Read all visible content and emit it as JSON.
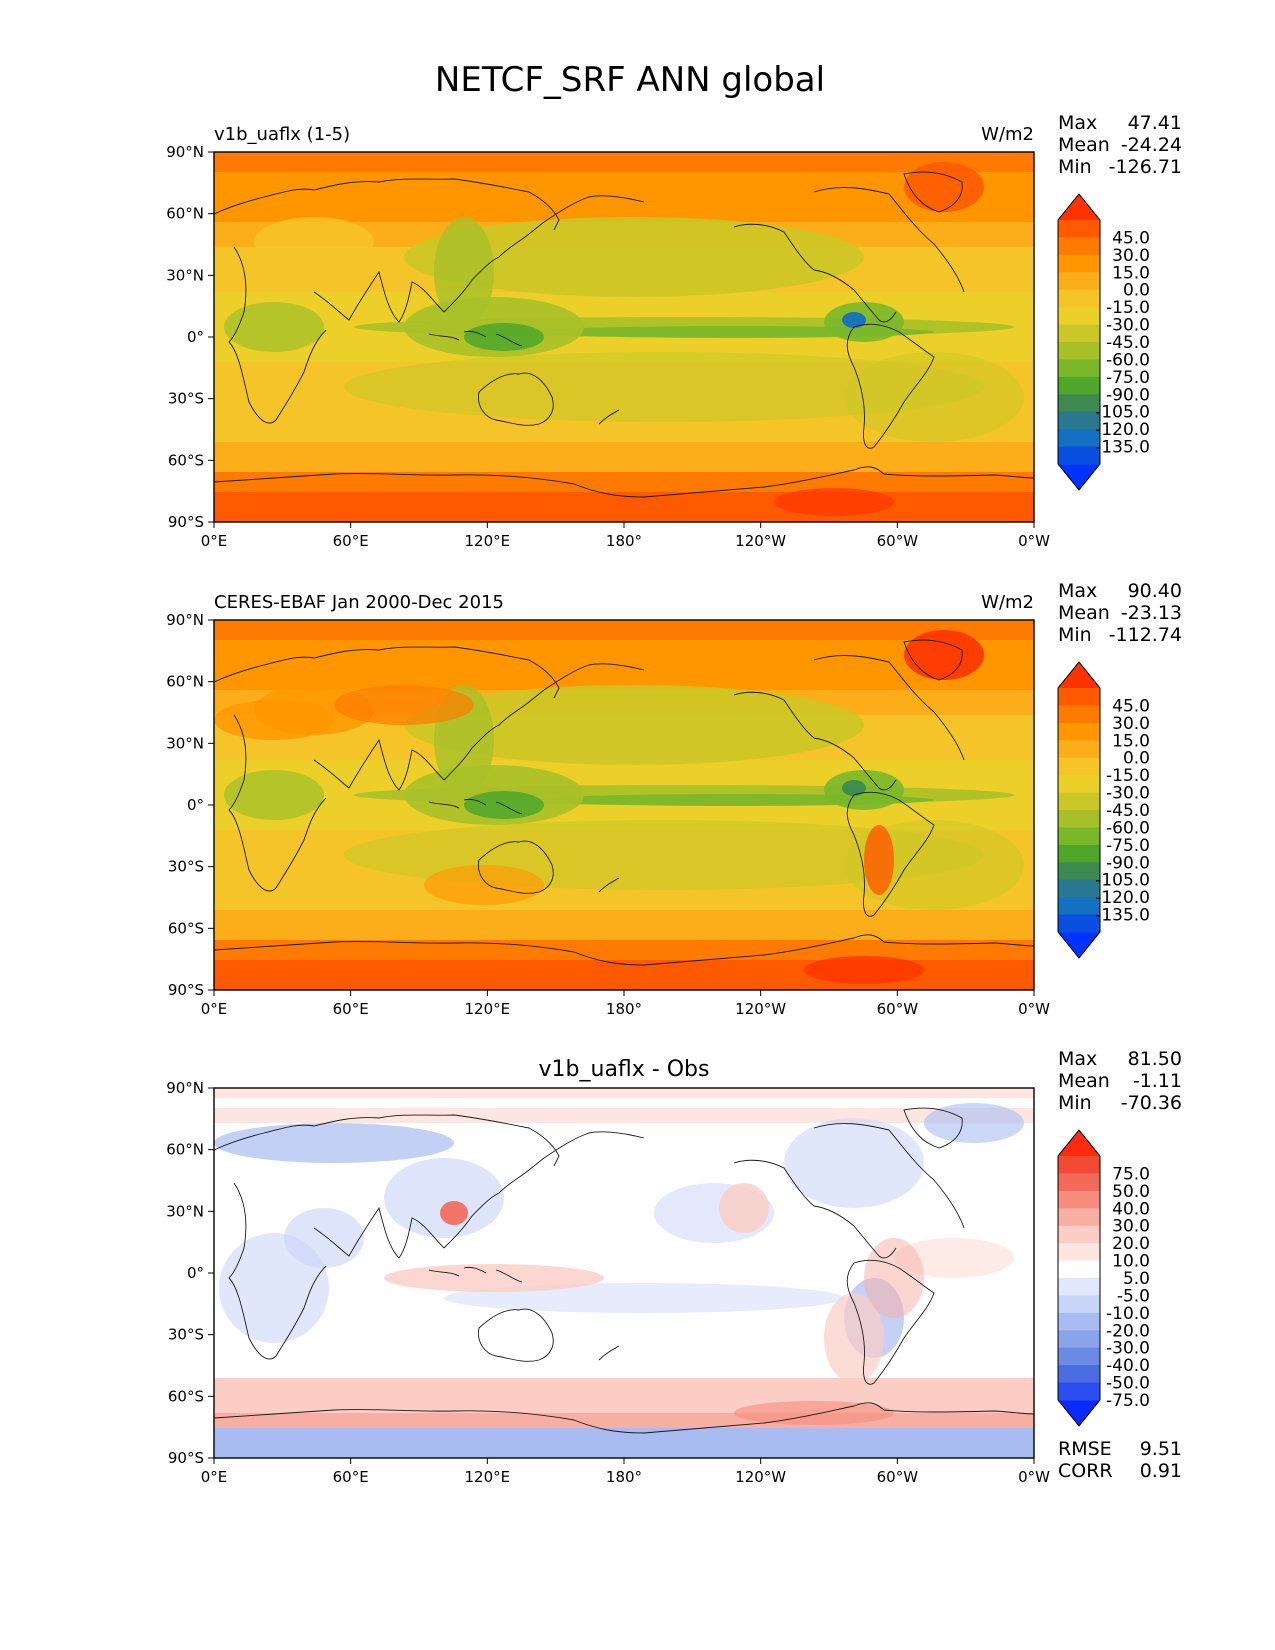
{
  "title": "NETCF_SRF ANN global",
  "x_ticks": [
    "0°E",
    "60°E",
    "120°E",
    "180°",
    "120°W",
    "60°W",
    "0°W"
  ],
  "y_ticks": [
    "90°N",
    "60°N",
    "30°N",
    "0°",
    "30°S",
    "60°S",
    "90°S"
  ],
  "stat_labels": {
    "max": "Max",
    "mean": "Mean",
    "min": "Min",
    "rmse": "RMSE",
    "corr": "CORR"
  },
  "panels": [
    {
      "title_left": "v1b_uaflx (1-5)",
      "title_center": "",
      "units": "W/m2",
      "stats": {
        "max": "47.41",
        "mean": "-24.24",
        "min": "-126.71"
      },
      "colorbar": {
        "ticks": [
          "45.0",
          "30.0",
          "15.0",
          "0.0",
          "-15.0",
          "-30.0",
          "-45.0",
          "-60.0",
          "-75.0",
          "-90.0",
          "-105.0",
          "-120.0",
          "-135.0"
        ],
        "colors": [
          "#ff3300",
          "#ff5a00",
          "#ff7a00",
          "#ff9600",
          "#fcae1a",
          "#f5c428",
          "#eccf28",
          "#c9c826",
          "#a8c028",
          "#7ab82a",
          "#4ea72b",
          "#3c8a50",
          "#2a7890",
          "#1470c0",
          "#0a50e0",
          "#0033ff"
        ]
      },
      "map_style": "model"
    },
    {
      "title_left": "CERES-EBAF Jan 2000-Dec 2015",
      "title_center": "",
      "units": "W/m2",
      "stats": {
        "max": "90.40",
        "mean": "-23.13",
        "min": "-112.74"
      },
      "colorbar": {
        "ticks": [
          "45.0",
          "30.0",
          "15.0",
          "0.0",
          "-15.0",
          "-30.0",
          "-45.0",
          "-60.0",
          "-75.0",
          "-90.0",
          "-105.0",
          "-120.0",
          "-135.0"
        ],
        "colors": [
          "#ff3300",
          "#ff5a00",
          "#ff7a00",
          "#ff9600",
          "#fcae1a",
          "#f5c428",
          "#eccf28",
          "#c9c826",
          "#a8c028",
          "#7ab82a",
          "#4ea72b",
          "#3c8a50",
          "#2a7890",
          "#1470c0",
          "#0a50e0",
          "#0033ff"
        ]
      },
      "map_style": "obs"
    },
    {
      "title_left": "",
      "title_center": "v1b_uaflx - Obs",
      "units": "",
      "stats": {
        "max": "81.50",
        "mean": "-1.11",
        "min": "-70.36",
        "rmse": "9.51",
        "corr": "0.91"
      },
      "colorbar": {
        "ticks": [
          "75.0",
          "50.0",
          "40.0",
          "30.0",
          "20.0",
          "10.0",
          "5.0",
          "-5.0",
          "-10.0",
          "-20.0",
          "-30.0",
          "-40.0",
          "-50.0",
          "-75.0"
        ],
        "colors": [
          "#ff2a10",
          "#f04a35",
          "#f26a58",
          "#f58c7c",
          "#f8aea2",
          "#fbcdc5",
          "#fde6e2",
          "#ffffff",
          "#e2e8fc",
          "#c8d4f8",
          "#a8bcf2",
          "#8aa4ec",
          "#6a8ae4",
          "#4a6ce0",
          "#2a4ef0",
          "#0a2aff"
        ]
      },
      "map_style": "diff"
    }
  ]
}
